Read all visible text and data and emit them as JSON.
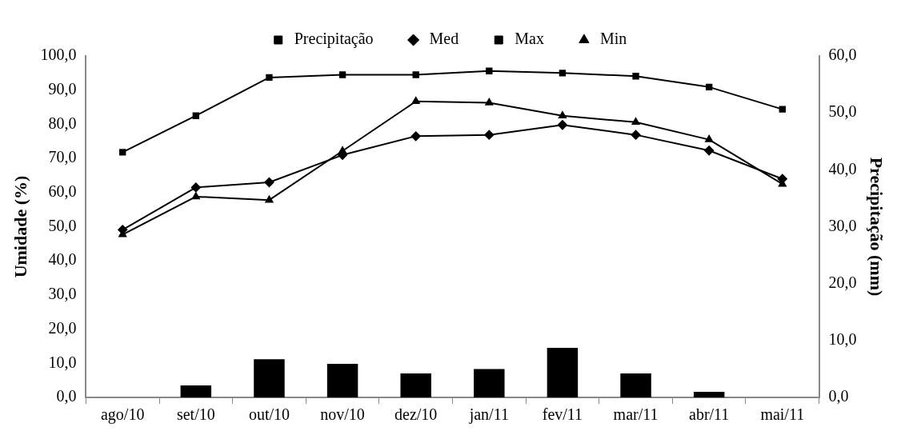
{
  "chart_data": {
    "type": "line",
    "xlabel": null,
    "ylabel": "Umidade (%)",
    "y2label": "Precipitação (mm)",
    "categories": [
      "ago/10",
      "set/10",
      "out/10",
      "nov/10",
      "dez/10",
      "jan/11",
      "fev/11",
      "mar/11",
      "abr/11",
      "mai/11"
    ],
    "series": [
      {
        "name": "Precipitação",
        "type": "bar",
        "axis": "y2",
        "color": "#000000",
        "values": [
          0,
          2.1,
          6.7,
          5.9,
          4.2,
          5.0,
          8.7,
          4.2,
          1.0,
          0
        ]
      },
      {
        "name": "Med",
        "marker": "diamond",
        "color": "#000000",
        "values": [
          49.1,
          61.5,
          63.0,
          71.0,
          76.5,
          76.9,
          79.8,
          76.9,
          72.3,
          64.0
        ]
      },
      {
        "name": "Max",
        "marker": "square",
        "color": "#000000",
        "values": [
          71.8,
          82.5,
          93.7,
          94.5,
          94.5,
          95.6,
          95.0,
          94.1,
          90.9,
          84.4
        ]
      },
      {
        "name": "Min",
        "marker": "triangle",
        "color": "#000000",
        "values": [
          47.7,
          58.8,
          57.8,
          72.2,
          86.7,
          86.3,
          82.5,
          80.6,
          75.5,
          62.5
        ]
      }
    ],
    "ylim": [
      0,
      100
    ],
    "yticks": [
      {
        "value": 0,
        "label": "0,0"
      },
      {
        "value": 10,
        "label": "10,0"
      },
      {
        "value": 20,
        "label": "20,0"
      },
      {
        "value": 30,
        "label": "30,0"
      },
      {
        "value": 40,
        "label": "40,0"
      },
      {
        "value": 50,
        "label": "50,0"
      },
      {
        "value": 60,
        "label": "60,0"
      },
      {
        "value": 70,
        "label": "70,0"
      },
      {
        "value": 80,
        "label": "80,0"
      },
      {
        "value": 90,
        "label": "90,0"
      },
      {
        "value": 100,
        "label": "100,0"
      }
    ],
    "y2lim": [
      0,
      60
    ],
    "y2ticks": [
      {
        "value": 0,
        "label": "0,0"
      },
      {
        "value": 10,
        "label": "10,0"
      },
      {
        "value": 20,
        "label": "20,0"
      },
      {
        "value": 30,
        "label": "30,0"
      },
      {
        "value": 40,
        "label": "40,0"
      },
      {
        "value": 50,
        "label": "50,0"
      },
      {
        "value": 60,
        "label": "60,0"
      }
    ],
    "grid": false,
    "legend": "top"
  }
}
